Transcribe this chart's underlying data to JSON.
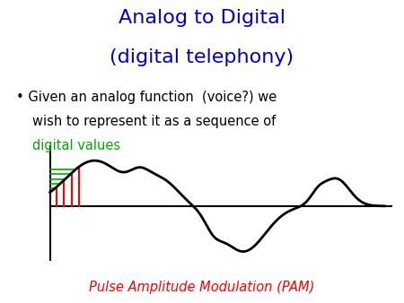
{
  "title_line1": "Analog to Digital",
  "title_line2": "(digital telephony)",
  "title_color": "#0000CC",
  "title_fontsize": 16,
  "bullet_text_line1": "Given an analog function  (voice?) we",
  "bullet_text_line2": "wish to represent it as a sequence of",
  "bullet_text_color": "#000000",
  "bullet_highlight": "digital values",
  "bullet_highlight_color": "#00AA00",
  "bullet_fontsize": 10.5,
  "pam_label": "Pulse Amplitude Modulation (PAM)",
  "pam_color": "#FF0000",
  "pam_fontsize": 10.5,
  "background_color": "#FFFFFF",
  "wave_color": "#000000",
  "axis_color": "#000000",
  "green_hatch_color": "#00AA00",
  "red_bar_color": "#FF0000"
}
